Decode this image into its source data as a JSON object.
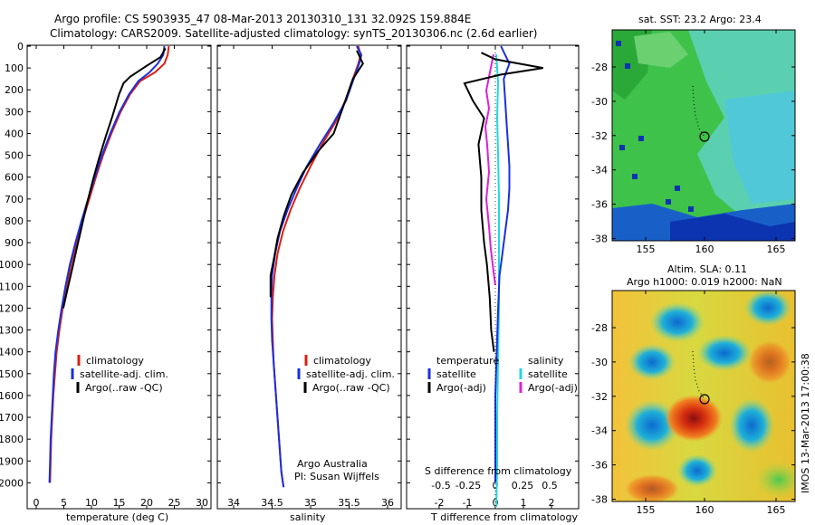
{
  "header": {
    "line1": "Argo profile: CS 5903935_47 08-Mar-2013 20130310_131 32.092S 159.884E",
    "line2": "Climatology: CARS2009. Satellite-adjusted climatology: synTS_20130306.nc (2.6d earlier)"
  },
  "colors": {
    "climatology": "#dd1f10",
    "satellite": "#1a2fe0",
    "argo": "#000000",
    "argo_salinity_diff": "#e020d8",
    "satellite_salinity_diff": "#20d8e0"
  },
  "depth_axis": {
    "ticks": [
      0,
      100,
      200,
      300,
      400,
      500,
      600,
      700,
      800,
      900,
      1000,
      1100,
      1200,
      1300,
      1400,
      1500,
      1600,
      1700,
      1800,
      1900,
      2000
    ],
    "range": [
      0,
      2050
    ]
  },
  "panels": {
    "temperature": {
      "xlabel": "temperature (deg C)",
      "xticks": [
        0,
        5,
        10,
        15,
        20,
        25,
        30
      ],
      "legend": [
        "climatology",
        "satellite-adj. clim.",
        "Argo(..raw -QC)"
      ]
    },
    "salinity": {
      "xlabel": "salinity",
      "xticks": [
        "34",
        "34.5",
        "35",
        "35.5",
        "36"
      ],
      "legend": [
        "climatology",
        "satellite-adj. clim.",
        "Argo(..raw -QC)"
      ],
      "credit_line1": "Argo Australia",
      "credit_line2": "PI: Susan Wijffels"
    },
    "difference": {
      "xlabel": "T difference from climatology",
      "toplabel": "S difference from climatology",
      "t_ticks": [
        "-2",
        "-1",
        "0",
        "1",
        "2"
      ],
      "s_ticks": [
        "-0.5",
        "-0.25",
        "0",
        "0.25",
        "0.5"
      ],
      "legend_temp_title": "temperature",
      "legend_sal_title": "salinity",
      "legend_temp": [
        "satellite",
        "Argo(-adj)"
      ],
      "legend_sal": [
        "satellite",
        "Argo(-adj)"
      ]
    }
  },
  "maps": {
    "sst": {
      "title": "sat. SST: 23.2  Argo: 23.4",
      "xticks": [
        "155",
        "160",
        "165"
      ],
      "yticks": [
        "-28",
        "-30",
        "-32",
        "-34",
        "-36",
        "-38"
      ]
    },
    "sla": {
      "title1": "Altim. SLA: 0.11",
      "title2": "Argo h1000: 0.019 h2000: NaN",
      "xticks": [
        "155",
        "160",
        "165"
      ],
      "yticks": [
        "-28",
        "-30",
        "-32",
        "-34",
        "-36",
        "-38"
      ]
    }
  },
  "footer": {
    "stamp": "IMOS 13-Mar-2013 17:00:38"
  },
  "chart_data": [
    {
      "type": "line",
      "xlabel": "temperature (deg C)",
      "ylabel": "",
      "xlim": [
        -1,
        31
      ],
      "ylim": [
        2050,
        0
      ],
      "series": [
        {
          "name": "climatology",
          "x": [
            24.0,
            23.8,
            23.2,
            21.5,
            18.8,
            17.0,
            15.3,
            13.6,
            12.1,
            10.8,
            9.6,
            8.4,
            7.3,
            6.3,
            5.5,
            4.8,
            4.2,
            3.7,
            3.4,
            3.1,
            2.9,
            2.7,
            2.6,
            2.5
          ],
          "y": [
            0,
            40,
            80,
            120,
            160,
            220,
            300,
            400,
            500,
            600,
            700,
            800,
            900,
            1000,
            1100,
            1200,
            1300,
            1400,
            1500,
            1600,
            1700,
            1800,
            1900,
            2000
          ]
        },
        {
          "name": "satellite-adj. clim.",
          "x": [
            23.2,
            23.0,
            22.0,
            20.5,
            18.5,
            16.8,
            15.1,
            13.4,
            11.9,
            10.6,
            9.4,
            8.2,
            7.1,
            6.1,
            5.3,
            4.6,
            4.0,
            3.5,
            3.2,
            3.0,
            2.8,
            2.6,
            2.5,
            2.4
          ],
          "y": [
            0,
            40,
            80,
            120,
            160,
            220,
            300,
            400,
            500,
            600,
            700,
            800,
            900,
            1000,
            1100,
            1200,
            1300,
            1400,
            1500,
            1600,
            1700,
            1800,
            1900,
            2000
          ]
        },
        {
          "name": "Argo(..raw -QC)",
          "x": [
            23.4,
            22.5,
            20.0,
            17.0,
            15.8,
            15.0,
            13.8,
            12.5,
            11.3,
            10.2,
            9.2,
            8.3,
            7.4,
            6.5,
            5.6,
            4.9
          ],
          "y": [
            10,
            50,
            90,
            140,
            170,
            220,
            320,
            420,
            520,
            620,
            720,
            820,
            920,
            1020,
            1120,
            1200
          ]
        }
      ]
    },
    {
      "type": "line",
      "xlabel": "salinity",
      "ylabel": "",
      "xlim": [
        33.75,
        36.1
      ],
      "ylim": [
        2050,
        0
      ],
      "series": [
        {
          "name": "climatology",
          "x": [
            35.62,
            35.65,
            35.62,
            35.55,
            35.45,
            35.32,
            35.15,
            35.0,
            34.86,
            34.74,
            34.64,
            34.57,
            34.53,
            34.51,
            34.5,
            34.51,
            34.52,
            34.54,
            34.56,
            34.58,
            34.6,
            34.62,
            34.64,
            34.65
          ],
          "y": [
            0,
            40,
            80,
            150,
            250,
            350,
            450,
            550,
            650,
            750,
            850,
            950,
            1050,
            1150,
            1250,
            1350,
            1450,
            1550,
            1650,
            1750,
            1850,
            1950,
            2000,
            2020
          ]
        },
        {
          "name": "satellite-adj. clim.",
          "x": [
            35.6,
            35.66,
            35.63,
            35.56,
            35.46,
            35.3,
            35.12,
            34.95,
            34.82,
            34.7,
            34.6,
            34.54,
            34.5,
            34.49,
            34.49,
            34.5,
            34.52,
            34.54,
            34.56,
            34.58,
            34.6,
            34.62,
            34.64,
            34.65
          ],
          "y": [
            0,
            40,
            80,
            150,
            250,
            350,
            450,
            550,
            650,
            750,
            850,
            950,
            1050,
            1150,
            1250,
            1350,
            1450,
            1550,
            1650,
            1750,
            1850,
            1950,
            2000,
            2020
          ]
        },
        {
          "name": "Argo(..raw -QC)",
          "x": [
            35.6,
            35.68,
            35.55,
            35.45,
            35.3,
            35.1,
            34.9,
            34.75,
            34.65,
            34.57,
            34.52,
            34.48,
            34.48
          ],
          "y": [
            20,
            80,
            150,
            250,
            400,
            480,
            580,
            680,
            780,
            880,
            980,
            1050,
            1150
          ]
        }
      ]
    },
    {
      "type": "line",
      "xlabel": "T difference from climatology",
      "ylabel": "",
      "xlim": [
        -2.6,
        2.7
      ],
      "ylim": [
        2050,
        0
      ],
      "series": [
        {
          "name": "satellite",
          "x": [
            0.2,
            0.5,
            0.3,
            0.35,
            0.4,
            0.45,
            0.5,
            0.5,
            0.45,
            0.35,
            0.25,
            0.15,
            0.1,
            0.05,
            0.0,
            0.0
          ],
          "y": [
            0,
            80,
            150,
            250,
            350,
            450,
            550,
            650,
            750,
            850,
            950,
            1050,
            1200,
            1400,
            1600,
            2000
          ]
        },
        {
          "name": "Argo(-adj)",
          "x": [
            -0.5,
            0.0,
            1.7,
            0.2,
            -1.1,
            -0.8,
            -0.4,
            -0.6,
            -0.5,
            -0.5,
            -0.4,
            -0.3,
            -0.2,
            -0.15,
            -0.05
          ],
          "y": [
            30,
            60,
            100,
            130,
            170,
            250,
            330,
            450,
            600,
            750,
            900,
            1000,
            1150,
            1300,
            1400
          ]
        }
      ]
    }
  ]
}
